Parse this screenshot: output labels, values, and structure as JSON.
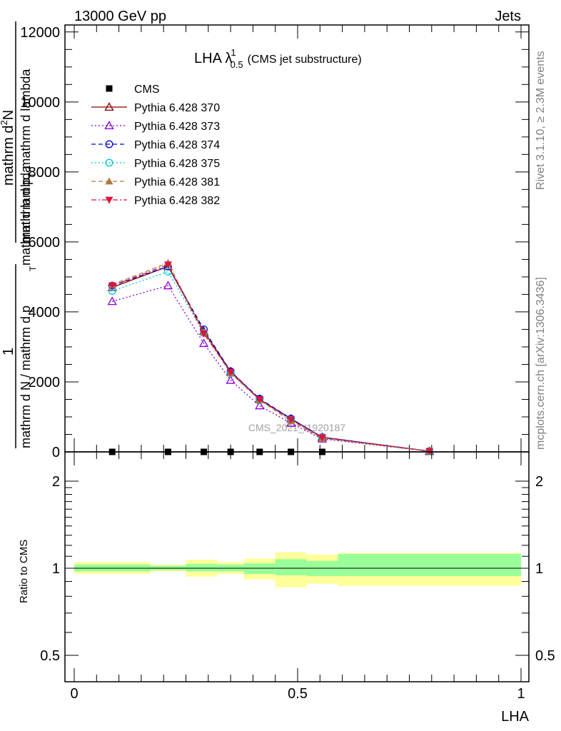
{
  "header": {
    "left": "13000 GeV pp",
    "right": "Jets"
  },
  "side_text": {
    "rivet": "Rivet 3.1.10, ≥ 2.3M events",
    "mcplots": "mcplots.cern.ch [arXiv:1306.3436]"
  },
  "watermark": "CMS_2021_I1920187",
  "main_title": {
    "prefix": "LHA ",
    "symbol": "λ",
    "sup": "1",
    "sub": "0.5",
    "note": "(CMS jet substructure)"
  },
  "ylabel_main": {
    "numer": "1",
    "denom": "mathrm d N / mathrm d p",
    "denom_sub": "T",
    "denom_rest": " mathrm d lambda",
    "frac_lines": [
      "mathrm d",
      "mathrm d p",
      "mathrm d"
    ]
  },
  "ylabel_main_full": "mathrm d^2N / mathrm d p_T mathrm d lambda / (1/mathrm dN/mathrm d p_T)",
  "ylabel_ratio": "Ratio to CMS",
  "xlabel": "LHA",
  "chart_data": [
    {
      "type": "line",
      "panel": "main",
      "xlim": [
        -0.02,
        1.02
      ],
      "ylim": [
        0,
        12200
      ],
      "yticks": [
        0,
        2000,
        4000,
        6000,
        8000,
        10000,
        12000
      ],
      "ytick_labels": [
        "0",
        "2000",
        "4000",
        "6000",
        "8000",
        "10000",
        "12000"
      ],
      "legend_position": "top-left",
      "series": [
        {
          "name": "CMS",
          "color": "#000000",
          "marker": "square",
          "line": "none",
          "x": [
            0.085,
            0.21,
            0.29,
            0.35,
            0.415,
            0.485,
            0.555,
            0.795
          ],
          "y": [
            0,
            0,
            0,
            0,
            0,
            0,
            0,
            0
          ]
        },
        {
          "name": "Pythia 6.428 370",
          "color": "#8b0000",
          "marker": "triangle-open",
          "line": "solid",
          "x": [
            0.085,
            0.21,
            0.29,
            0.35,
            0.415,
            0.485,
            0.555,
            0.795
          ],
          "y": [
            4700,
            5300,
            3450,
            2300,
            1500,
            950,
            420,
            20
          ]
        },
        {
          "name": "Pythia 6.428 373",
          "color": "#8b00d4",
          "marker": "triangle-open",
          "line": "dotted",
          "x": [
            0.085,
            0.21,
            0.29,
            0.35,
            0.415,
            0.485,
            0.555,
            0.795
          ],
          "y": [
            4300,
            4750,
            3100,
            2050,
            1320,
            820,
            370,
            18
          ]
        },
        {
          "name": "Pythia 6.428 374",
          "color": "#0000e0",
          "marker": "circle-open",
          "line": "dashed",
          "x": [
            0.085,
            0.21,
            0.29,
            0.35,
            0.415,
            0.485,
            0.555,
            0.795
          ],
          "y": [
            4750,
            5300,
            3500,
            2300,
            1520,
            950,
            420,
            20
          ]
        },
        {
          "name": "Pythia 6.428 375",
          "color": "#00c8c8",
          "marker": "circle-open",
          "line": "dotted",
          "x": [
            0.085,
            0.21,
            0.29,
            0.35,
            0.415,
            0.485,
            0.555,
            0.795
          ],
          "y": [
            4600,
            5150,
            3400,
            2250,
            1480,
            920,
            410,
            20
          ]
        },
        {
          "name": "Pythia 6.428 381",
          "color": "#b07840",
          "marker": "triangle",
          "line": "dashed",
          "x": [
            0.085,
            0.21,
            0.29,
            0.35,
            0.415,
            0.485,
            0.555,
            0.795
          ],
          "y": [
            4780,
            5400,
            3420,
            2250,
            1480,
            880,
            390,
            18
          ]
        },
        {
          "name": "Pythia 6.428 382",
          "color": "#dc143c",
          "marker": "triangle-down",
          "line": "dashdot",
          "x": [
            0.085,
            0.21,
            0.29,
            0.35,
            0.415,
            0.485,
            0.555,
            0.795
          ],
          "y": [
            4750,
            5350,
            3380,
            2280,
            1500,
            920,
            410,
            20
          ]
        }
      ]
    },
    {
      "type": "area",
      "panel": "ratio",
      "xlim": [
        -0.02,
        1.02
      ],
      "ylim": [
        0.4,
        2.4
      ],
      "log_y": true,
      "yticks": [
        0.5,
        1,
        2
      ],
      "ytick_labels": [
        "0.5",
        "1",
        "2"
      ],
      "xticks": [
        0,
        0.5,
        1
      ],
      "xtick_labels": [
        "0",
        "0.5",
        "1"
      ],
      "bins": [
        {
          "x0": 0.0,
          "x1": 0.17,
          "stat_lo": 0.975,
          "stat_hi": 1.03,
          "tot_lo": 0.955,
          "tot_hi": 1.05
        },
        {
          "x0": 0.17,
          "x1": 0.25,
          "stat_lo": 0.985,
          "stat_hi": 1.02,
          "tot_lo": 0.975,
          "tot_hi": 1.03
        },
        {
          "x0": 0.25,
          "x1": 0.32,
          "stat_lo": 0.975,
          "stat_hi": 1.035,
          "tot_lo": 0.935,
          "tot_hi": 1.07
        },
        {
          "x0": 0.32,
          "x1": 0.38,
          "stat_lo": 0.975,
          "stat_hi": 1.03,
          "tot_lo": 0.955,
          "tot_hi": 1.05
        },
        {
          "x0": 0.38,
          "x1": 0.45,
          "stat_lo": 0.955,
          "stat_hi": 1.04,
          "tot_lo": 0.915,
          "tot_hi": 1.08
        },
        {
          "x0": 0.45,
          "x1": 0.52,
          "stat_lo": 0.945,
          "stat_hi": 1.075,
          "tot_lo": 0.86,
          "tot_hi": 1.135
        },
        {
          "x0": 0.52,
          "x1": 0.59,
          "stat_lo": 0.94,
          "stat_hi": 1.06,
          "tot_lo": 0.885,
          "tot_hi": 1.115
        },
        {
          "x0": 0.59,
          "x1": 1.0,
          "stat_lo": 0.94,
          "stat_hi": 1.12,
          "tot_lo": 0.87,
          "tot_hi": 1.13
        }
      ],
      "band_colors": {
        "total": "#ffff99",
        "stat": "#99ff99"
      },
      "reference_line": 1
    }
  ]
}
